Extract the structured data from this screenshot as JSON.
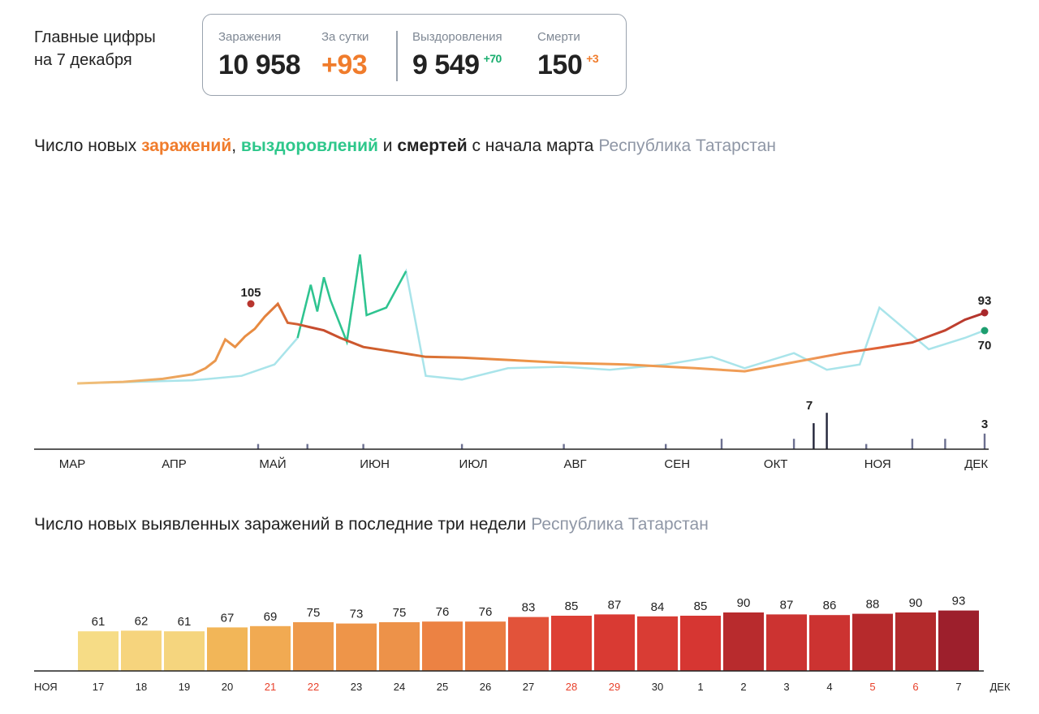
{
  "summary": {
    "date_line1": "Главные цифры",
    "date_line2": "на 7 декабря",
    "infections": {
      "label": "Заражения",
      "value": "10 958"
    },
    "daily": {
      "label": "За сутки",
      "value": "+93"
    },
    "recoveries": {
      "label": "Выздоровления",
      "value": "9 549",
      "delta": "+70"
    },
    "deaths": {
      "label": "Смерти",
      "value": "150",
      "delta": "+3"
    }
  },
  "chart1": {
    "title_prefix": "Число новых ",
    "title_infections": "заражений",
    "title_sep1": ", ",
    "title_recoveries": "выздоровлений",
    "title_sep2": " и ",
    "title_deaths": "смертей",
    "title_suffix": " с начала марта",
    "region": "Республика Татарстан",
    "annotations": {
      "peak": "105",
      "last_infections": "93",
      "last_recoveries": "70",
      "peak_deaths": "7",
      "last_deaths": "3"
    },
    "months": [
      "МАР",
      "АПР",
      "МАЙ",
      "ИЮН",
      "ИЮЛ",
      "АВГ",
      "СЕН",
      "ОКТ",
      "НОЯ",
      "ДЕК"
    ]
  },
  "chart2": {
    "title": "Число новых выявленных заражений в последние три недели",
    "region": "Республика Татарстан",
    "left_month": "НОЯ",
    "right_month": "ДЕК"
  },
  "colors": {
    "infections": "#f07c2c",
    "recoveries": "#2ec78b",
    "deaths": "#4a4e6e",
    "weekend": "#e8402a"
  },
  "chart_data": [
    {
      "type": "line",
      "title": "Число новых заражений, выздоровлений и смертей с начала марта",
      "subtitle": "Республика Татарстан",
      "x_range": [
        "2020-03-01",
        "2020-12-07"
      ],
      "x_ticks": [
        "МАР",
        "АПР",
        "МАЙ",
        "ИЮН",
        "ИЮЛ",
        "АВГ",
        "СЕН",
        "ОКТ",
        "НОЯ",
        "ДЕК"
      ],
      "series": [
        {
          "name": "заражений",
          "x": [
            "2020-03-06",
            "2020-03-20",
            "2020-04-01",
            "2020-04-10",
            "2020-04-14",
            "2020-04-17",
            "2020-04-20",
            "2020-04-23",
            "2020-04-26",
            "2020-04-29",
            "2020-05-02",
            "2020-05-06",
            "2020-05-09",
            "2020-05-12",
            "2020-05-16",
            "2020-05-20",
            "2020-05-25",
            "2020-06-01",
            "2020-06-10",
            "2020-06-20",
            "2020-07-01",
            "2020-07-15",
            "2020-08-01",
            "2020-08-20",
            "2020-09-10",
            "2020-09-25",
            "2020-10-05",
            "2020-10-15",
            "2020-10-25",
            "2020-11-05",
            "2020-11-15",
            "2020-11-25",
            "2020-12-01",
            "2020-12-07"
          ],
          "values": [
            0,
            2,
            6,
            12,
            20,
            30,
            58,
            48,
            62,
            72,
            88,
            105,
            80,
            78,
            74,
            70,
            60,
            48,
            42,
            35,
            34,
            31,
            27,
            25,
            20,
            16,
            24,
            32,
            40,
            47,
            54,
            70,
            84,
            93
          ]
        },
        {
          "name": "выздоровлений",
          "x": [
            "2020-03-06",
            "2020-04-10",
            "2020-04-25",
            "2020-05-05",
            "2020-05-12",
            "2020-05-16",
            "2020-05-18",
            "2020-05-20",
            "2020-05-22",
            "2020-05-27",
            "2020-05-31",
            "2020-06-02",
            "2020-06-08",
            "2020-06-14",
            "2020-06-20",
            "2020-07-01",
            "2020-07-15",
            "2020-08-01",
            "2020-08-15",
            "2020-09-01",
            "2020-09-15",
            "2020-09-25",
            "2020-10-10",
            "2020-10-20",
            "2020-10-30",
            "2020-11-05",
            "2020-11-20",
            "2020-12-01",
            "2020-12-07"
          ],
          "values": [
            0,
            4,
            10,
            25,
            60,
            130,
            95,
            140,
            110,
            55,
            170,
            90,
            100,
            148,
            10,
            5,
            20,
            22,
            18,
            25,
            35,
            20,
            40,
            18,
            25,
            100,
            45,
            60,
            70
          ]
        },
        {
          "name": "смертей",
          "x": [
            "2020-04-30",
            "2020-05-15",
            "2020-06-01",
            "2020-07-01",
            "2020-08-01",
            "2020-09-01",
            "2020-09-18",
            "2020-10-10",
            "2020-10-16",
            "2020-10-20",
            "2020-11-01",
            "2020-11-15",
            "2020-11-25",
            "2020-12-07"
          ],
          "values": [
            1,
            1,
            1,
            1,
            1,
            1,
            2,
            2,
            5,
            7,
            1,
            2,
            2,
            3
          ]
        }
      ]
    },
    {
      "type": "bar",
      "title": "Число новых выявленных заражений в последние три недели",
      "subtitle": "Республика Татарстан",
      "categories": [
        "17",
        "18",
        "19",
        "20",
        "21",
        "22",
        "23",
        "24",
        "25",
        "26",
        "27",
        "28",
        "29",
        "30",
        "1",
        "2",
        "3",
        "4",
        "5",
        "6",
        "7"
      ],
      "weekend": [
        false,
        false,
        false,
        false,
        true,
        true,
        false,
        false,
        false,
        false,
        false,
        true,
        true,
        false,
        false,
        false,
        false,
        false,
        true,
        true,
        false
      ],
      "values": [
        61,
        62,
        61,
        67,
        69,
        75,
        73,
        75,
        76,
        76,
        83,
        85,
        87,
        84,
        85,
        90,
        87,
        86,
        88,
        90,
        93
      ],
      "x_start_label": "НОЯ",
      "x_end_label": "ДЕК"
    }
  ]
}
